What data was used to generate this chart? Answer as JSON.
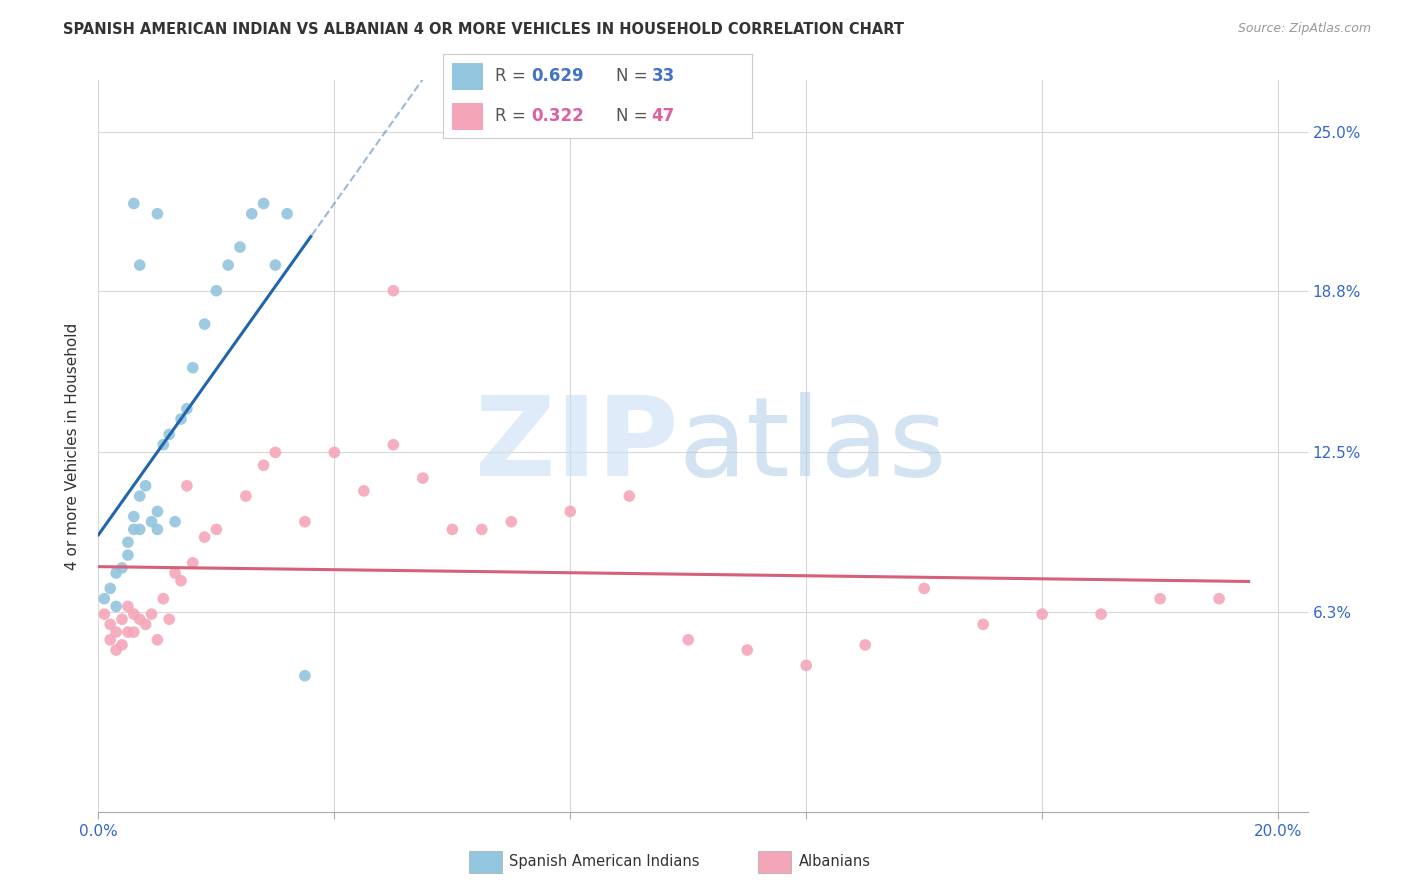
{
  "title": "SPANISH AMERICAN INDIAN VS ALBANIAN 4 OR MORE VEHICLES IN HOUSEHOLD CORRELATION CHART",
  "source": "Source: ZipAtlas.com",
  "ylabel": "4 or more Vehicles in Household",
  "ytick_labels": [
    "6.3%",
    "12.5%",
    "18.8%",
    "25.0%"
  ],
  "ytick_values": [
    0.063,
    0.125,
    0.188,
    0.25
  ],
  "xlim": [
    0.0,
    0.205
  ],
  "ylim": [
    -0.015,
    0.27
  ],
  "blue_color": "#92c5de",
  "pink_color": "#f4a6b8",
  "blue_line_color": "#2166ac",
  "pink_line_color": "#d6607a",
  "legend_r1_label": "R = ",
  "legend_r1_val": "0.629",
  "legend_n1_label": "N = ",
  "legend_n1_val": "33",
  "legend_r2_label": "R = ",
  "legend_r2_val": "0.322",
  "legend_n2_label": "N = ",
  "legend_n2_val": "47",
  "legend_text_color": "#4472c4",
  "legend_pink_color": "#e05fa0",
  "spanish_x": [
    0.001,
    0.002,
    0.003,
    0.003,
    0.004,
    0.005,
    0.005,
    0.006,
    0.006,
    0.007,
    0.007,
    0.008,
    0.009,
    0.01,
    0.01,
    0.011,
    0.012,
    0.013,
    0.014,
    0.015,
    0.016,
    0.018,
    0.02,
    0.022,
    0.024,
    0.026,
    0.028,
    0.03,
    0.032,
    0.006,
    0.007,
    0.01,
    0.035
  ],
  "spanish_y": [
    0.068,
    0.072,
    0.078,
    0.065,
    0.08,
    0.09,
    0.085,
    0.095,
    0.1,
    0.108,
    0.095,
    0.112,
    0.098,
    0.095,
    0.102,
    0.128,
    0.132,
    0.098,
    0.138,
    0.142,
    0.158,
    0.175,
    0.188,
    0.198,
    0.205,
    0.218,
    0.222,
    0.198,
    0.218,
    0.222,
    0.198,
    0.218,
    0.038
  ],
  "albanian_x": [
    0.001,
    0.002,
    0.002,
    0.003,
    0.003,
    0.004,
    0.004,
    0.005,
    0.005,
    0.006,
    0.006,
    0.007,
    0.008,
    0.009,
    0.01,
    0.011,
    0.012,
    0.013,
    0.014,
    0.015,
    0.016,
    0.018,
    0.02,
    0.025,
    0.028,
    0.03,
    0.035,
    0.04,
    0.045,
    0.05,
    0.055,
    0.065,
    0.07,
    0.08,
    0.09,
    0.1,
    0.11,
    0.12,
    0.13,
    0.14,
    0.15,
    0.16,
    0.17,
    0.18,
    0.19,
    0.05,
    0.06
  ],
  "albanian_y": [
    0.062,
    0.058,
    0.052,
    0.055,
    0.048,
    0.06,
    0.05,
    0.055,
    0.065,
    0.055,
    0.062,
    0.06,
    0.058,
    0.062,
    0.052,
    0.068,
    0.06,
    0.078,
    0.075,
    0.112,
    0.082,
    0.092,
    0.095,
    0.108,
    0.12,
    0.125,
    0.098,
    0.125,
    0.11,
    0.128,
    0.115,
    0.095,
    0.098,
    0.102,
    0.108,
    0.052,
    0.048,
    0.042,
    0.05,
    0.072,
    0.058,
    0.062,
    0.062,
    0.068,
    0.068,
    0.188,
    0.095
  ]
}
